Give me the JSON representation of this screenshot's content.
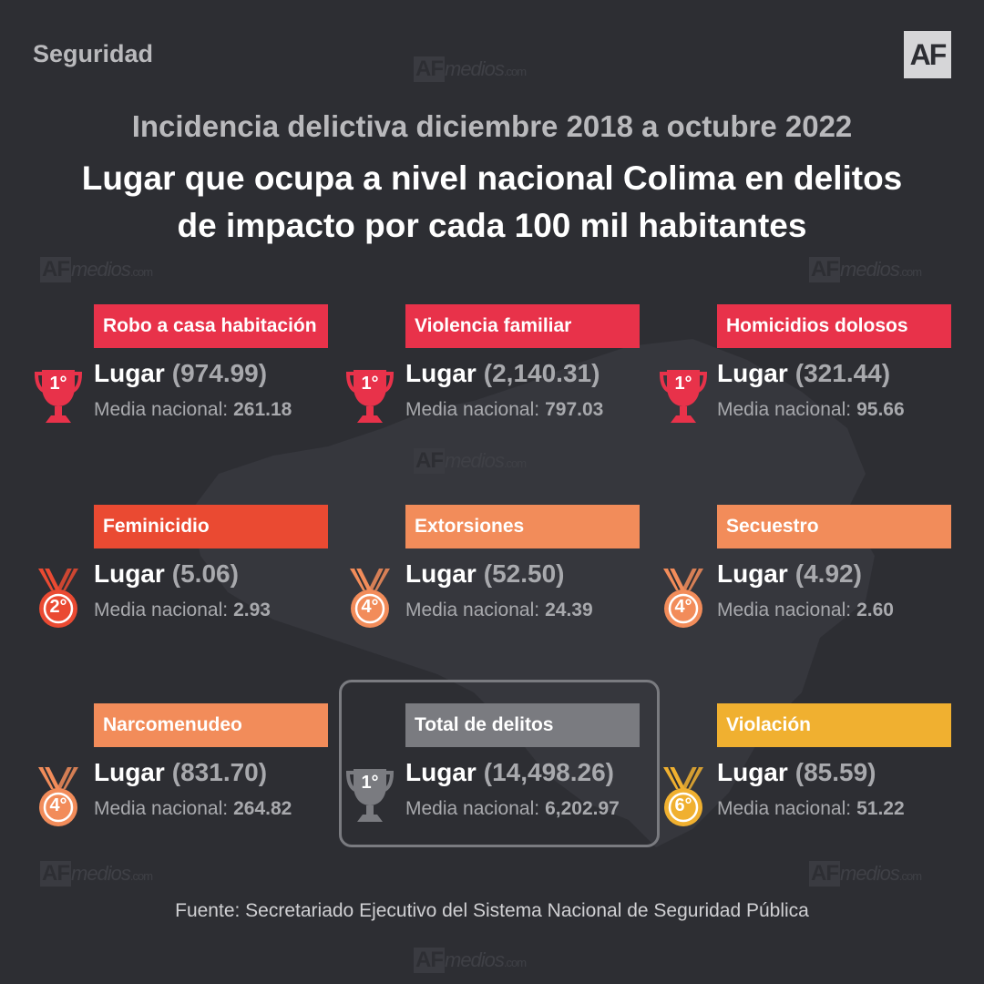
{
  "header": {
    "section": "Seguridad",
    "logo": "AF",
    "subtitle": "Incidencia delictiva diciembre 2018 a octubre 2022",
    "title_line1": "Lugar que ocupa a nivel nacional Colima en delitos",
    "title_line2": "de impacto por cada 100 mil habitantes"
  },
  "watermark": {
    "a": "AF",
    "b": "medios",
    "c": ".com"
  },
  "labels": {
    "rank_word": "Lugar",
    "avg_label": "Media nacional:"
  },
  "colors": {
    "red": "#e8324a",
    "orange_red": "#ea4a32",
    "orange": "#f28c5a",
    "gray": "#7a7b80",
    "yellow": "#f0b030"
  },
  "cards": [
    {
      "name": "Robo a casa habitación",
      "rank": "1°",
      "value": "(974.99)",
      "avg": "261.18",
      "color": "#e8324a",
      "icon": "trophy-icon"
    },
    {
      "name": "Violencia familiar",
      "rank": "1°",
      "value": "(2,140.31)",
      "avg": "797.03",
      "color": "#e8324a",
      "icon": "trophy-icon"
    },
    {
      "name": "Homicidios dolosos",
      "rank": "1°",
      "value": "(321.44)",
      "avg": "95.66",
      "color": "#e8324a",
      "icon": "trophy-icon"
    },
    {
      "name": "Feminicidio",
      "rank": "2°",
      "value": "(5.06)",
      "avg": "2.93",
      "color": "#ea4a32",
      "icon": "medal-icon"
    },
    {
      "name": "Extorsiones",
      "rank": "4°",
      "value": "(52.50)",
      "avg": "24.39",
      "color": "#f28c5a",
      "icon": "medal-icon"
    },
    {
      "name": "Secuestro",
      "rank": "4°",
      "value": "(4.92)",
      "avg": "2.60",
      "color": "#f28c5a",
      "icon": "medal-icon"
    },
    {
      "name": "Narcomenudeo",
      "rank": "4°",
      "value": "(831.70)",
      "avg": "264.82",
      "color": "#f28c5a",
      "icon": "medal-icon"
    },
    {
      "name": "Total de delitos",
      "rank": "1°",
      "value": "(14,498.26)",
      "avg": "6,202.97",
      "color": "#7a7b80",
      "icon": "trophy-icon"
    },
    {
      "name": "Violación",
      "rank": "6°",
      "value": "(85.59)",
      "avg": "51.22",
      "color": "#f0b030",
      "icon": "medal-icon"
    }
  ],
  "source": "Fuente: Secretariado Ejecutivo del Sistema Nacional de Seguridad Pública"
}
